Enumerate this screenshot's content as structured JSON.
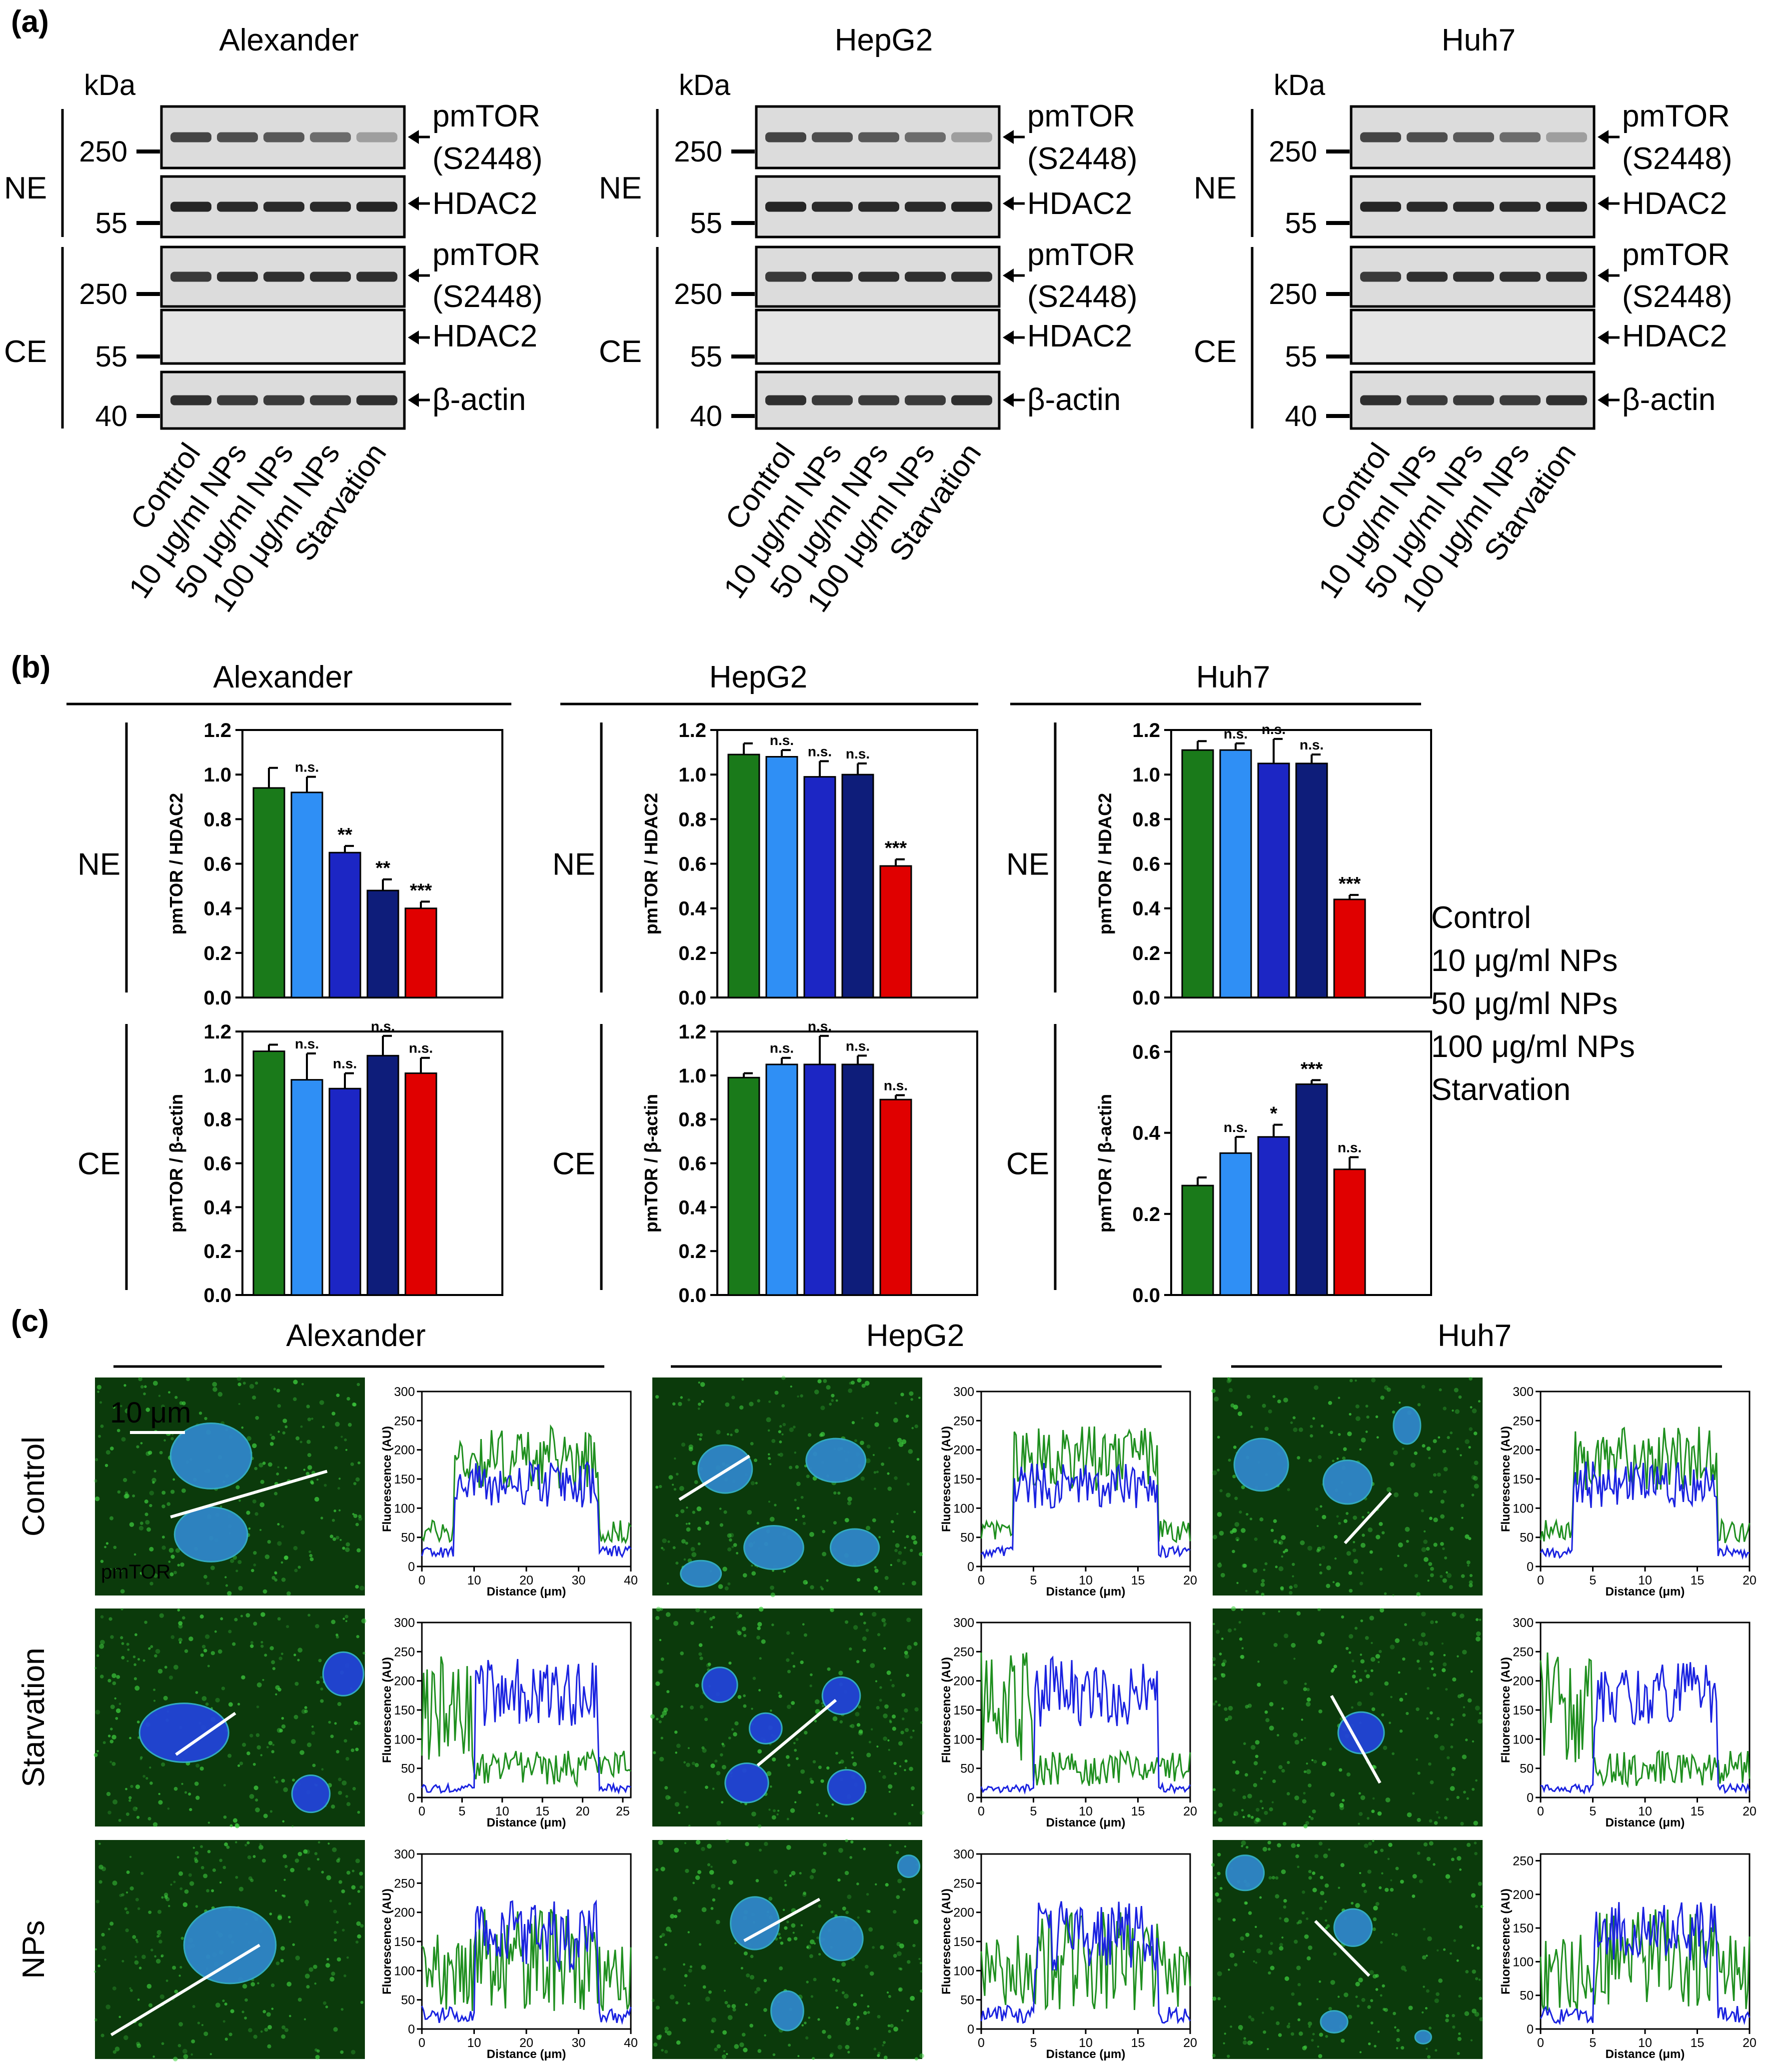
{
  "figure": {
    "panel_labels": [
      "(a)",
      "(b)",
      "(c)"
    ],
    "kda_label": "kDa",
    "fraction_labels": {
      "nuclear": "NE",
      "cytoplasmic": "CE"
    },
    "colors": {
      "control": "#1a7a1a",
      "np10": "#2f8ff5",
      "np50": "#1c26c4",
      "np100": "#0e1d7a",
      "starvation": "#e00000",
      "legend_control": "#22a022",
      "legend_np10": "#22b0ef",
      "legend_np50": "#2626e6",
      "legend_np100": "#152c8c",
      "legend_starvation": "#e42222"
    }
  },
  "panel_a": {
    "cell_lines": [
      "Alexander",
      "HepG2",
      "Huh7"
    ],
    "kda_markers": [
      "250",
      "55",
      "250",
      "55",
      "40"
    ],
    "protein_labels": {
      "pmtor_line1": "pmTOR",
      "pmtor_line2": "(S2448)",
      "hdac2": "HDAC2",
      "bactin": "β-actin"
    },
    "lanes": [
      "Control",
      "10 μg/ml NPs",
      "50 μg/ml NPs",
      "100 μg/ml NPs",
      "Starvation"
    ]
  },
  "panel_b": {
    "legend": [
      "Control",
      "10 μg/ml NPs",
      "50 μg/ml NPs",
      "100 μg/ml NPs",
      "Starvation"
    ],
    "xlabel_ne": "pmTOR / HDAC2",
    "xlabel_ce": "pmTOR / β-actin"
  },
  "chart_data": [
    {
      "type": "bar",
      "title": "Alexander",
      "fraction": "NE",
      "ylabel": "pmTOR / HDAC2",
      "ylim": [
        0,
        1.2
      ],
      "yticks": [
        "0.0",
        "0.2",
        "0.4",
        "0.6",
        "0.8",
        "1.0",
        "1.2"
      ],
      "categories": [
        "Control",
        "10 μg/ml NPs",
        "50 μg/ml NPs",
        "100 μg/ml NPs",
        "Starvation"
      ],
      "values": [
        0.94,
        0.92,
        0.65,
        0.48,
        0.4
      ],
      "errors": [
        0.09,
        0.07,
        0.03,
        0.05,
        0.03
      ],
      "significance": [
        "",
        "n.s.",
        "**",
        "**",
        "***"
      ]
    },
    {
      "type": "bar",
      "title": "Alexander",
      "fraction": "CE",
      "ylabel": "pmTOR / β-actin",
      "ylim": [
        0,
        1.2
      ],
      "yticks": [
        "0.0",
        "0.2",
        "0.4",
        "0.6",
        "0.8",
        "1.0",
        "1.2"
      ],
      "categories": [
        "Control",
        "10 μg/ml NPs",
        "50 μg/ml NPs",
        "100 μg/ml NPs",
        "Starvation"
      ],
      "values": [
        1.11,
        0.98,
        0.94,
        1.09,
        1.01
      ],
      "errors": [
        0.03,
        0.12,
        0.07,
        0.09,
        0.07
      ],
      "significance": [
        "",
        "n.s.",
        "n.s.",
        "n.s.",
        "n.s."
      ]
    },
    {
      "type": "bar",
      "title": "HepG2",
      "fraction": "NE",
      "ylabel": "pmTOR / HDAC2",
      "ylim": [
        0,
        1.2
      ],
      "yticks": [
        "0.0",
        "0.2",
        "0.4",
        "0.6",
        "0.8",
        "1.0",
        "1.2"
      ],
      "categories": [
        "Control",
        "10 μg/ml NPs",
        "50 μg/ml NPs",
        "100 μg/ml NPs",
        "Starvation"
      ],
      "values": [
        1.09,
        1.08,
        0.99,
        1.0,
        0.59
      ],
      "errors": [
        0.05,
        0.03,
        0.07,
        0.05,
        0.03
      ],
      "significance": [
        "",
        "n.s.",
        "n.s.",
        "n.s.",
        "***"
      ]
    },
    {
      "type": "bar",
      "title": "HepG2",
      "fraction": "CE",
      "ylabel": "pmTOR / β-actin",
      "ylim": [
        0,
        1.2
      ],
      "yticks": [
        "0.0",
        "0.2",
        "0.4",
        "0.6",
        "0.8",
        "1.0",
        "1.2"
      ],
      "categories": [
        "Control",
        "10 μg/ml NPs",
        "50 μg/ml NPs",
        "100 μg/ml NPs",
        "Starvation"
      ],
      "values": [
        0.99,
        1.05,
        1.05,
        1.05,
        0.89
      ],
      "errors": [
        0.02,
        0.03,
        0.13,
        0.04,
        0.02
      ],
      "significance": [
        "",
        "n.s.",
        "n.s.",
        "n.s.",
        "n.s."
      ]
    },
    {
      "type": "bar",
      "title": "Huh7",
      "fraction": "NE",
      "ylabel": "pmTOR / HDAC2",
      "ylim": [
        0,
        1.2
      ],
      "yticks": [
        "0.0",
        "0.2",
        "0.4",
        "0.6",
        "0.8",
        "1.0",
        "1.2"
      ],
      "categories": [
        "Control",
        "10 μg/ml NPs",
        "50 μg/ml NPs",
        "100 μg/ml NPs",
        "Starvation"
      ],
      "values": [
        1.11,
        1.11,
        1.05,
        1.05,
        0.44
      ],
      "errors": [
        0.04,
        0.03,
        0.11,
        0.04,
        0.02
      ],
      "significance": [
        "",
        "n.s.",
        "n.s.",
        "n.s.",
        "***"
      ]
    },
    {
      "type": "bar",
      "title": "Huh7",
      "fraction": "CE",
      "ylabel": "pmTOR / β-actin",
      "ylim": [
        0,
        0.65
      ],
      "yticks": [
        "0.0",
        "0.2",
        "0.4",
        "0.6"
      ],
      "categories": [
        "Control",
        "10 μg/ml NPs",
        "50 μg/ml NPs",
        "100 μg/ml NPs",
        "Starvation"
      ],
      "values": [
        0.27,
        0.35,
        0.39,
        0.52,
        0.31
      ],
      "errors": [
        0.02,
        0.04,
        0.03,
        0.01,
        0.03
      ],
      "significance": [
        "",
        "n.s.",
        "*",
        "***",
        "n.s."
      ]
    }
  ],
  "panel_c": {
    "cell_lines": [
      "Alexander",
      "HepG2",
      "Huh7"
    ],
    "row_labels": [
      "Control",
      "Starvation",
      "NPs"
    ],
    "scale_bar_label": "10 μm",
    "stain_label": "pmTOR",
    "plot_ylabel": "Fluorescence (AU)",
    "plot_xlabel": "Distance (μm)",
    "profiles": [
      {
        "row": "Control",
        "cell": "Alexander",
        "xmax": 40,
        "xticks": [
          "0",
          "10",
          "20",
          "30",
          "40"
        ],
        "ymax": 300,
        "yticks": [
          "0",
          "50",
          "100",
          "150",
          "200",
          "250",
          "300"
        ]
      },
      {
        "row": "Control",
        "cell": "HepG2",
        "xmax": 20,
        "xticks": [
          "0",
          "5",
          "10",
          "15",
          "20"
        ],
        "ymax": 300,
        "yticks": [
          "0",
          "50",
          "100",
          "150",
          "200",
          "250",
          "300"
        ]
      },
      {
        "row": "Control",
        "cell": "Huh7",
        "xmax": 20,
        "xticks": [
          "0",
          "5",
          "10",
          "15",
          "20"
        ],
        "ymax": 300,
        "yticks": [
          "0",
          "50",
          "100",
          "150",
          "200",
          "250",
          "300"
        ]
      },
      {
        "row": "Starvation",
        "cell": "Alexander",
        "xmax": 26,
        "xticks": [
          "0",
          "5",
          "10",
          "15",
          "20",
          "25"
        ],
        "ymax": 300,
        "yticks": [
          "0",
          "50",
          "100",
          "150",
          "200",
          "250",
          "300"
        ]
      },
      {
        "row": "Starvation",
        "cell": "HepG2",
        "xmax": 20,
        "xticks": [
          "0",
          "5",
          "10",
          "15",
          "20"
        ],
        "ymax": 300,
        "yticks": [
          "0",
          "50",
          "100",
          "150",
          "200",
          "250",
          "300"
        ]
      },
      {
        "row": "Starvation",
        "cell": "Huh7",
        "xmax": 20,
        "xticks": [
          "0",
          "5",
          "10",
          "15",
          "20"
        ],
        "ymax": 300,
        "yticks": [
          "0",
          "50",
          "100",
          "150",
          "200",
          "250",
          "300"
        ]
      },
      {
        "row": "NPs",
        "cell": "Alexander",
        "xmax": 40,
        "xticks": [
          "0",
          "10",
          "20",
          "30",
          "40"
        ],
        "ymax": 300,
        "yticks": [
          "0",
          "50",
          "100",
          "150",
          "200",
          "250",
          "300"
        ]
      },
      {
        "row": "NPs",
        "cell": "HepG2",
        "xmax": 20,
        "xticks": [
          "0",
          "5",
          "10",
          "15",
          "20"
        ],
        "ymax": 300,
        "yticks": [
          "0",
          "50",
          "100",
          "150",
          "200",
          "250",
          "300"
        ]
      },
      {
        "row": "NPs",
        "cell": "Huh7",
        "xmax": 20,
        "xticks": [
          "0",
          "5",
          "10",
          "15",
          "20"
        ],
        "ymax": 260,
        "yticks": [
          "0",
          "50",
          "100",
          "150",
          "200",
          "250"
        ]
      }
    ]
  }
}
